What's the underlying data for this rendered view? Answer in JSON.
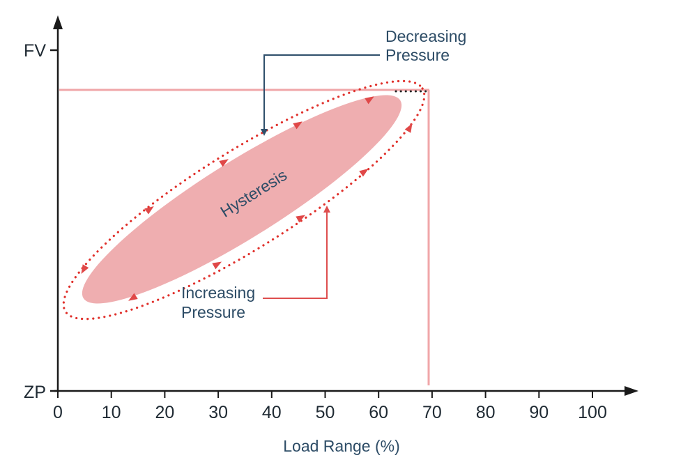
{
  "y_axis": {
    "top_label": "FV",
    "bottom_label": "ZP"
  },
  "x_axis": {
    "title": "Load Range (%)",
    "ticks": [
      "0",
      "10",
      "20",
      "30",
      "40",
      "50",
      "60",
      "70",
      "80",
      "90",
      "100"
    ]
  },
  "loop": {
    "label": "Hysteresis"
  },
  "annotations": {
    "decreasing": [
      "Decreasing",
      "Pressure"
    ],
    "increasing": [
      "Increasing",
      "Pressure"
    ]
  },
  "colors": {
    "axis": "#1a1a1a",
    "boundary_line": "#f0a6a8",
    "loop_fill": "#efaeb0",
    "dotted_path": "#e0302b",
    "arrow_marker": "#e04848",
    "decreasing_arrow": "#2f4f6b",
    "increasing_arrow": "#de4e4e",
    "label_text": "#2d4c66"
  }
}
